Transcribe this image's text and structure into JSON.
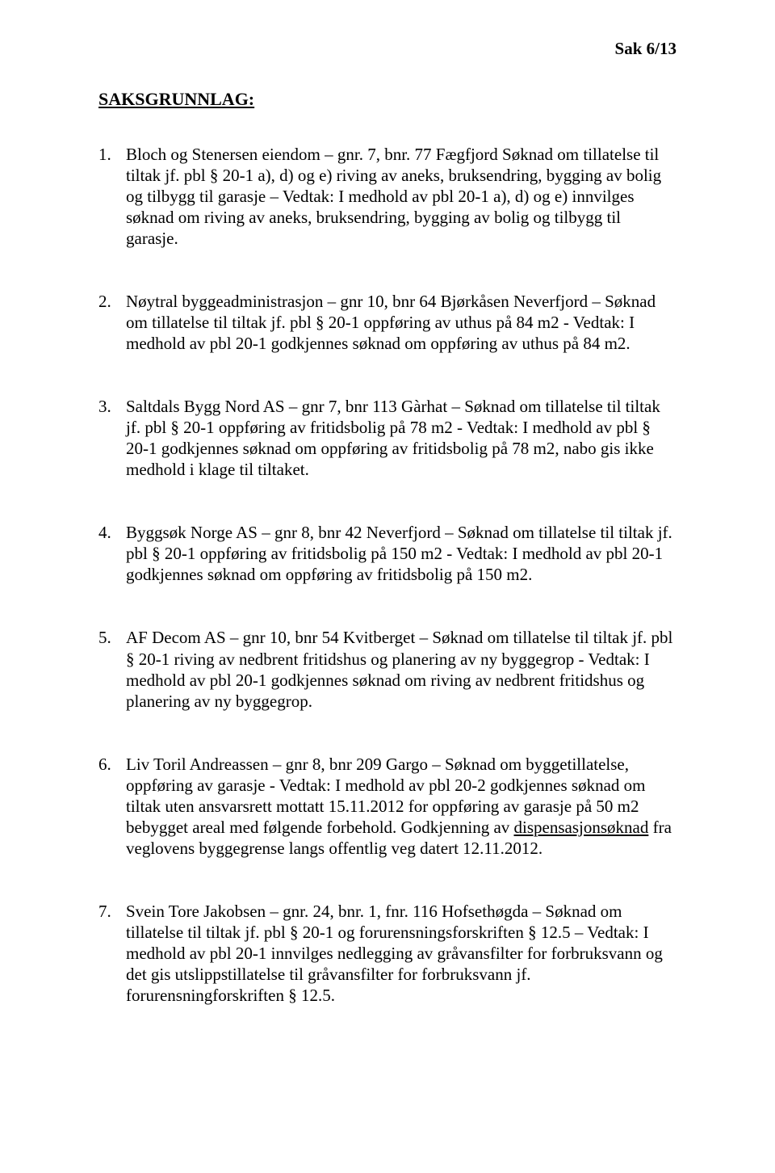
{
  "header": {
    "case_ref": "Sak 6/13"
  },
  "heading": "SAKSGRUNNLAG:",
  "items": [
    {
      "num": "1.",
      "text": "Bloch og Stenersen eiendom – gnr. 7, bnr. 77 Fægfjord Søknad om tillatelse til tiltak jf. pbl § 20-1 a), d) og e) riving av aneks, bruksendring, bygging av bolig og tilbygg til garasje – Vedtak: I medhold av pbl 20-1 a), d) og e)  innvilges søknad om riving av aneks, bruksendring, bygging av bolig og tilbygg til garasje."
    },
    {
      "num": "2.",
      "text": "Nøytral byggeadministrasjon – gnr 10, bnr 64 Bjørkåsen Neverfjord – Søknad om tillatelse til tiltak jf. pbl § 20-1 oppføring av uthus på 84 m2 - Vedtak: I medhold av pbl 20-1 godkjennes søknad om oppføring av uthus på 84 m2."
    },
    {
      "num": "3.",
      "text": "Saltdals Bygg Nord AS – gnr 7, bnr 113 Gàrhat – Søknad om tillatelse til tiltak jf. pbl § 20-1 oppføring av fritidsbolig på 78 m2 - Vedtak: I medhold av pbl § 20-1 godkjennes søknad om oppføring av fritidsbolig på 78 m2, nabo gis ikke medhold i klage til tiltaket."
    },
    {
      "num": "4.",
      "text": "Byggsøk Norge AS – gnr 8, bnr 42 Neverfjord – Søknad om tillatelse til tiltak jf. pbl § 20-1 oppføring av fritidsbolig på 150 m2 - Vedtak: I medhold av pbl 20-1 godkjennes søknad om oppføring av fritidsbolig på 150 m2."
    },
    {
      "num": "5.",
      "text": "AF Decom AS – gnr 10, bnr 54 Kvitberget – Søknad om tillatelse til tiltak jf. pbl § 20-1 riving av nedbrent fritidshus og planering av ny byggegrop - Vedtak: I medhold av pbl 20-1 godkjennes søknad om riving av nedbrent fritidshus og planering av ny byggegrop."
    },
    {
      "num": "6.",
      "text_pre": "Liv Toril Andreassen – gnr 8, bnr 209 Gargo – Søknad om byggetillatelse, oppføring av garasje - Vedtak: I medhold av pbl 20-2 godkjennes søknad om tiltak uten ansvarsrett mottatt 15.11.2012 for oppføring av garasje på 50 m2 bebygget areal med følgende forbehold. Godkjenning av ",
      "text_underline": "dispensasjonsøknad",
      "text_post": " fra veglovens byggegrense langs offentlig veg datert 12.11.2012."
    },
    {
      "num": "7.",
      "text": "Svein Tore Jakobsen – gnr. 24, bnr. 1, fnr. 116 Hofsethøgda – Søknad om tillatelse til tiltak jf. pbl § 20-1 og forurensningsforskriften § 12.5 – Vedtak: I medhold av pbl 20-1 innvilges nedlegging av gråvansfilter for forbruksvann og det gis utslippstillatelse til gråvansfilter for forbruksvann jf. forurensningforskriften § 12.5."
    }
  ]
}
